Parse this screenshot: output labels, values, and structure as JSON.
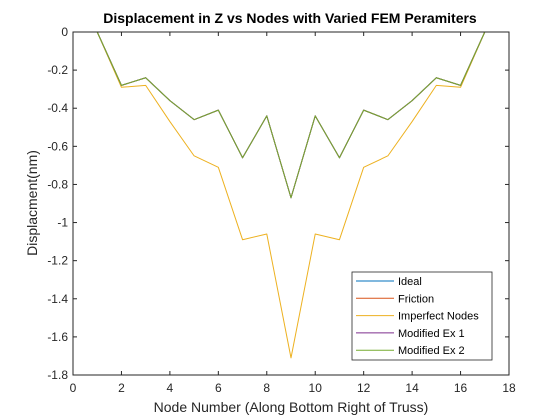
{
  "chart_data": {
    "type": "line",
    "title": "Displacement in Z vs Nodes with Varied FEM Peramiters",
    "xlabel": "Node Number (Along Bottom Right of Truss)",
    "ylabel": "Displacment(nm)",
    "xlim": [
      0,
      18
    ],
    "ylim": [
      -1.8,
      0
    ],
    "xticks": [
      0,
      2,
      4,
      6,
      8,
      10,
      12,
      14,
      16,
      18
    ],
    "yticks": [
      0,
      -0.2,
      -0.4,
      -0.6,
      -0.8,
      -1,
      -1.2,
      -1.4,
      -1.6,
      -1.8
    ],
    "xtick_labels": [
      "0",
      "2",
      "4",
      "6",
      "8",
      "10",
      "12",
      "14",
      "16",
      "18"
    ],
    "ytick_labels": [
      "0",
      "-0.2",
      "-0.4",
      "-0.6",
      "-0.8",
      "-1",
      "-1.2",
      "-1.4",
      "-1.6",
      "-1.8"
    ],
    "grid": false,
    "legend_position": "bottom-right",
    "x": [
      1,
      2,
      3,
      4,
      5,
      6,
      7,
      8,
      9,
      10,
      11,
      12,
      13,
      14,
      15,
      16,
      17
    ],
    "series": [
      {
        "name": "Ideal",
        "color": "#0072BD",
        "values": [
          0,
          -0.28,
          -0.24,
          -0.36,
          -0.46,
          -0.41,
          -0.66,
          -0.44,
          -0.87,
          -0.44,
          -0.66,
          -0.41,
          -0.46,
          -0.36,
          -0.24,
          -0.28,
          0
        ]
      },
      {
        "name": "Friction",
        "color": "#D95319",
        "values": [
          0,
          -0.28,
          -0.24,
          -0.36,
          -0.46,
          -0.41,
          -0.66,
          -0.44,
          -0.87,
          -0.44,
          -0.66,
          -0.41,
          -0.46,
          -0.36,
          -0.24,
          -0.28,
          0
        ]
      },
      {
        "name": "Imperfect Nodes",
        "color": "#EDB120",
        "values": [
          0,
          -0.29,
          -0.28,
          -0.47,
          -0.65,
          -0.71,
          -1.09,
          -1.06,
          -1.71,
          -1.06,
          -1.09,
          -0.71,
          -0.65,
          -0.47,
          -0.28,
          -0.29,
          0
        ]
      },
      {
        "name": "Modified Ex 1",
        "color": "#7E2F8E",
        "values": [
          0,
          -0.28,
          -0.24,
          -0.36,
          -0.46,
          -0.41,
          -0.66,
          -0.44,
          -0.87,
          -0.44,
          -0.66,
          -0.41,
          -0.46,
          -0.36,
          -0.24,
          -0.28,
          0
        ]
      },
      {
        "name": "Modified Ex 2",
        "color": "#77AC30",
        "values": [
          0,
          -0.28,
          -0.24,
          -0.36,
          -0.46,
          -0.41,
          -0.66,
          -0.44,
          -0.87,
          -0.44,
          -0.66,
          -0.41,
          -0.46,
          -0.36,
          -0.24,
          -0.28,
          0
        ]
      }
    ]
  }
}
